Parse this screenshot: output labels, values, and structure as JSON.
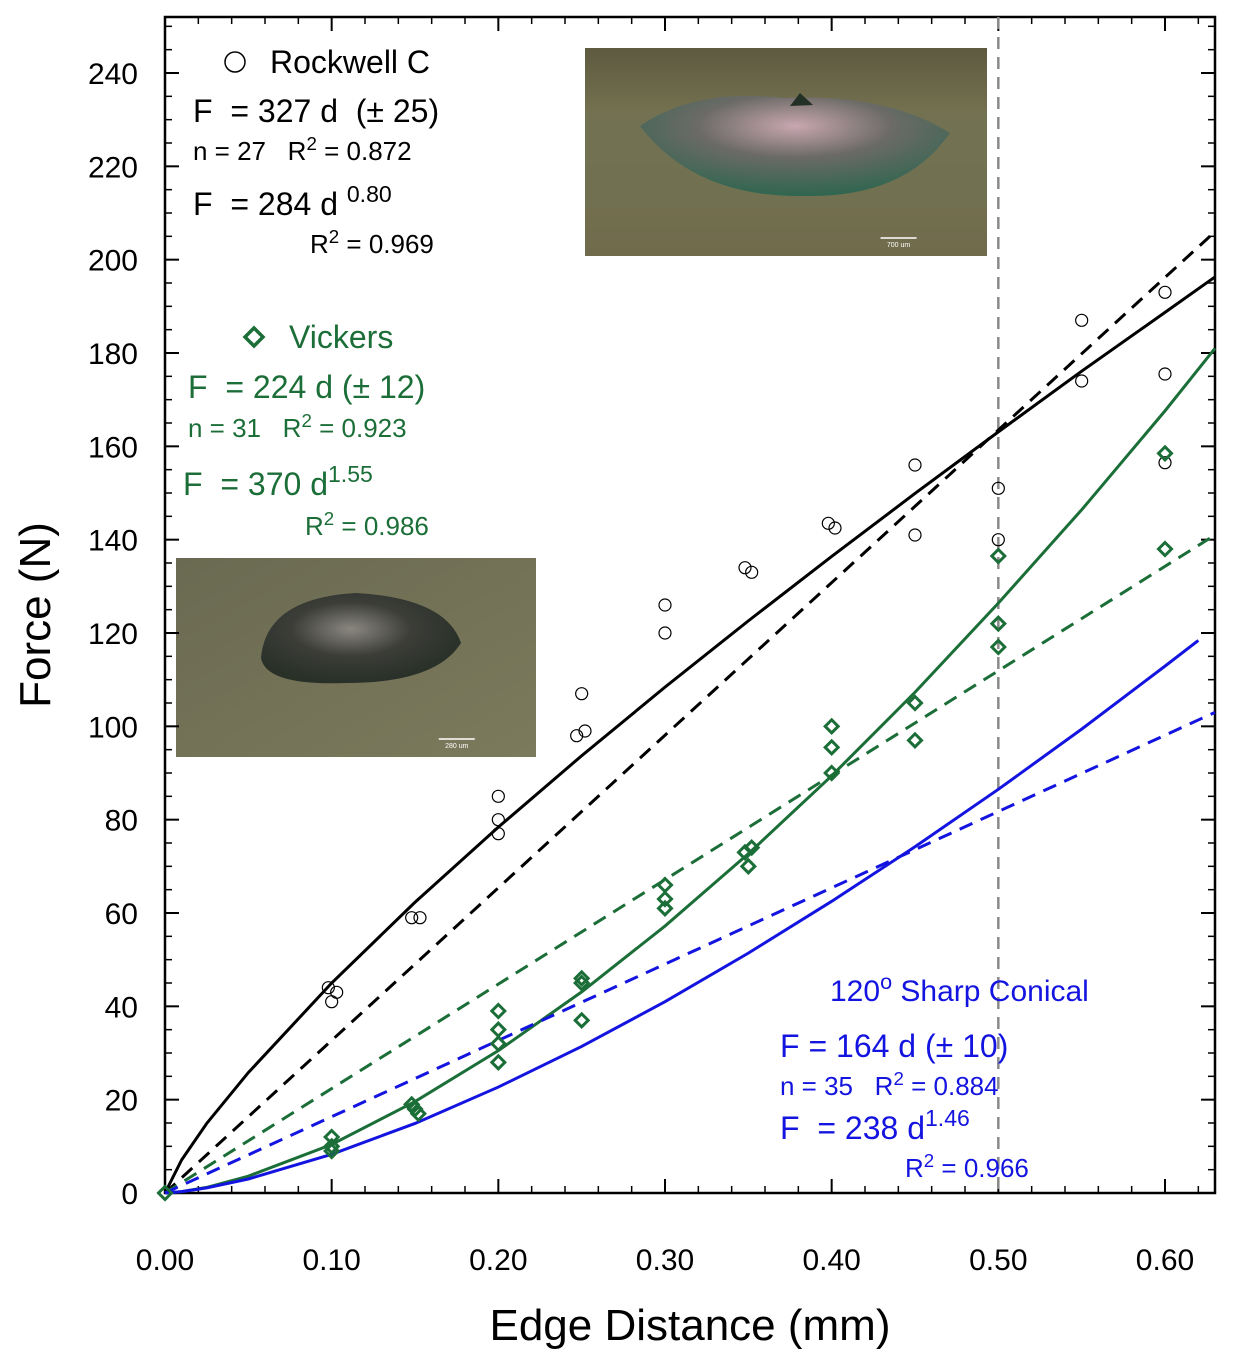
{
  "chart_data": {
    "type": "scatter",
    "xlabel": "Edge Distance (mm)",
    "ylabel": "Force (N)",
    "xlim": [
      0,
      0.63
    ],
    "ylim": [
      0,
      252
    ],
    "xticks": [
      {
        "value": 0,
        "label": "0.00"
      },
      {
        "value": 0.1,
        "label": "0.10"
      },
      {
        "value": 0.2,
        "label": "0.20"
      },
      {
        "value": 0.3,
        "label": "0.30"
      },
      {
        "value": 0.4,
        "label": "0.40"
      },
      {
        "value": 0.5,
        "label": "0.50"
      },
      {
        "value": 0.6,
        "label": "0.60"
      }
    ],
    "yticks": [
      0,
      20,
      40,
      60,
      80,
      100,
      120,
      140,
      160,
      180,
      200,
      220,
      240
    ],
    "xminorticks": [
      0.02,
      0.04,
      0.06,
      0.08,
      0.12,
      0.14,
      0.16,
      0.18,
      0.22,
      0.24,
      0.26,
      0.28,
      0.32,
      0.34,
      0.36,
      0.38,
      0.42,
      0.44,
      0.46,
      0.48,
      0.52,
      0.54,
      0.56,
      0.58,
      0.62
    ],
    "yminorticks": [
      5,
      10,
      15,
      25,
      30,
      35,
      45,
      50,
      55,
      65,
      70,
      75,
      85,
      90,
      95,
      105,
      110,
      115,
      125,
      130,
      135,
      145,
      150,
      155,
      165,
      170,
      175,
      185,
      190,
      195,
      205,
      210,
      215,
      225,
      230,
      235,
      245,
      250
    ],
    "vline": {
      "x": 0.5,
      "color": "#8a8a8a"
    },
    "series": [
      {
        "name": "Rockwell C",
        "type": "scatter",
        "marker": "circle",
        "color": "#000000",
        "x": [
          0.098,
          0.1,
          0.103,
          0.148,
          0.153,
          0.2,
          0.2,
          0.2,
          0.247,
          0.25,
          0.252,
          0.3,
          0.3,
          0.348,
          0.352,
          0.398,
          0.402,
          0.45,
          0.45,
          0.5,
          0.5,
          0.55,
          0.55,
          0.6,
          0.6,
          0.6
        ],
        "values": [
          44,
          41,
          43,
          59,
          59,
          85,
          80,
          77,
          98,
          107,
          99,
          126,
          120,
          134,
          133,
          143.5,
          142.5,
          156,
          141,
          151,
          140,
          187,
          174,
          193,
          175.5,
          156.5
        ]
      },
      {
        "name": "Vickers",
        "type": "scatter",
        "marker": "diamond",
        "color": "#1b6e37",
        "x": [
          0,
          0.1,
          0.1,
          0.1,
          0.148,
          0.15,
          0.152,
          0.2,
          0.2,
          0.2,
          0.2,
          0.25,
          0.25,
          0.25,
          0.3,
          0.3,
          0.3,
          0.348,
          0.352,
          0.35,
          0.4,
          0.4,
          0.4,
          0.45,
          0.45,
          0.5,
          0.5,
          0.5,
          0.6,
          0.6
        ],
        "values": [
          0,
          12,
          10,
          9,
          19,
          18,
          17,
          39,
          35,
          32,
          28,
          46,
          45,
          37,
          66,
          63,
          61,
          73,
          74,
          70,
          100,
          95.5,
          90,
          105,
          97,
          136.5,
          122,
          117,
          158.5,
          138
        ]
      },
      {
        "type": "line",
        "dash": false,
        "color": "#000000",
        "x": [
          0,
          0.01,
          0.025,
          0.05,
          0.1,
          0.15,
          0.2,
          0.25,
          0.3,
          0.35,
          0.4,
          0.45,
          0.5,
          0.55,
          0.6,
          0.63
        ],
        "values": [
          0,
          7.1,
          14.9,
          25.8,
          45.0,
          62.3,
          78.4,
          93.7,
          108.4,
          122.6,
          136.4,
          149.9,
          163.1,
          176.1,
          188.7,
          196.3
        ]
      },
      {
        "type": "line",
        "dash": true,
        "color": "#000000",
        "x": [
          0,
          0.63
        ],
        "values": [
          0,
          206
        ]
      },
      {
        "type": "line",
        "dash": false,
        "color": "#1b6e37",
        "x": [
          0,
          0.01,
          0.025,
          0.05,
          0.1,
          0.15,
          0.2,
          0.25,
          0.3,
          0.35,
          0.4,
          0.45,
          0.5,
          0.55,
          0.6,
          0.63
        ],
        "values": [
          0,
          0.3,
          1.2,
          3.6,
          10.4,
          19.6,
          30.5,
          43.1,
          57.2,
          72.7,
          89.4,
          107.3,
          126.4,
          146.4,
          167.6,
          181
        ]
      },
      {
        "type": "line",
        "dash": true,
        "color": "#1b6e37",
        "x": [
          0,
          0.63
        ],
        "values": [
          0,
          141
        ]
      },
      {
        "type": "line",
        "dash": false,
        "color": "#1414e0",
        "x": [
          0,
          0.01,
          0.025,
          0.05,
          0.1,
          0.15,
          0.2,
          0.25,
          0.3,
          0.35,
          0.4,
          0.45,
          0.5,
          0.55,
          0.6,
          0.62
        ],
        "values": [
          0,
          0.3,
          1.1,
          3.0,
          8.3,
          14.9,
          22.7,
          31.4,
          41.0,
          51.4,
          62.5,
          74.2,
          86.5,
          99.4,
          112.9,
          118.4
        ]
      },
      {
        "type": "line",
        "dash": true,
        "color": "#1414e0",
        "x": [
          0,
          0.63
        ],
        "values": [
          0,
          103
        ]
      }
    ],
    "annotations": [
      {
        "color": "#000000",
        "lines": [
          [
            "F  = 327 d  (± 25)"
          ],
          [
            "n = 27   R",
            {
              "sup": "2"
            },
            " = 0.872"
          ],
          [
            "F  = 284 d ",
            {
              "sup": "0.80"
            }
          ],
          [
            "R",
            {
              "sup": "2"
            },
            " = 0.969"
          ]
        ]
      },
      {
        "color": "#1b6e37",
        "lines": [
          [
            "F  = 224 d (± 12)"
          ],
          [
            "n = 31   R",
            {
              "sup": "2"
            },
            " = 0.923"
          ],
          [
            "F  = 370 d",
            {
              "sup": "1.55"
            }
          ],
          [
            "R",
            {
              "sup": "2"
            },
            " = 0.986"
          ]
        ]
      },
      {
        "color": "#1414e0",
        "lines": [
          [
            "120",
            {
              "sup": "o"
            },
            " Sharp Conical"
          ],
          [
            "F = 164 d (± 10)"
          ],
          [
            "n = 35   R",
            {
              "sup": "2"
            },
            " = 0.884"
          ],
          [
            "F  = 238 d",
            {
              "sup": "1.46"
            }
          ],
          [
            "R",
            {
              "sup": "2"
            },
            " = 0.966"
          ]
        ]
      }
    ],
    "insets": [
      {
        "scale_label": "700 um"
      },
      {
        "scale_label": "280 um"
      }
    ]
  }
}
